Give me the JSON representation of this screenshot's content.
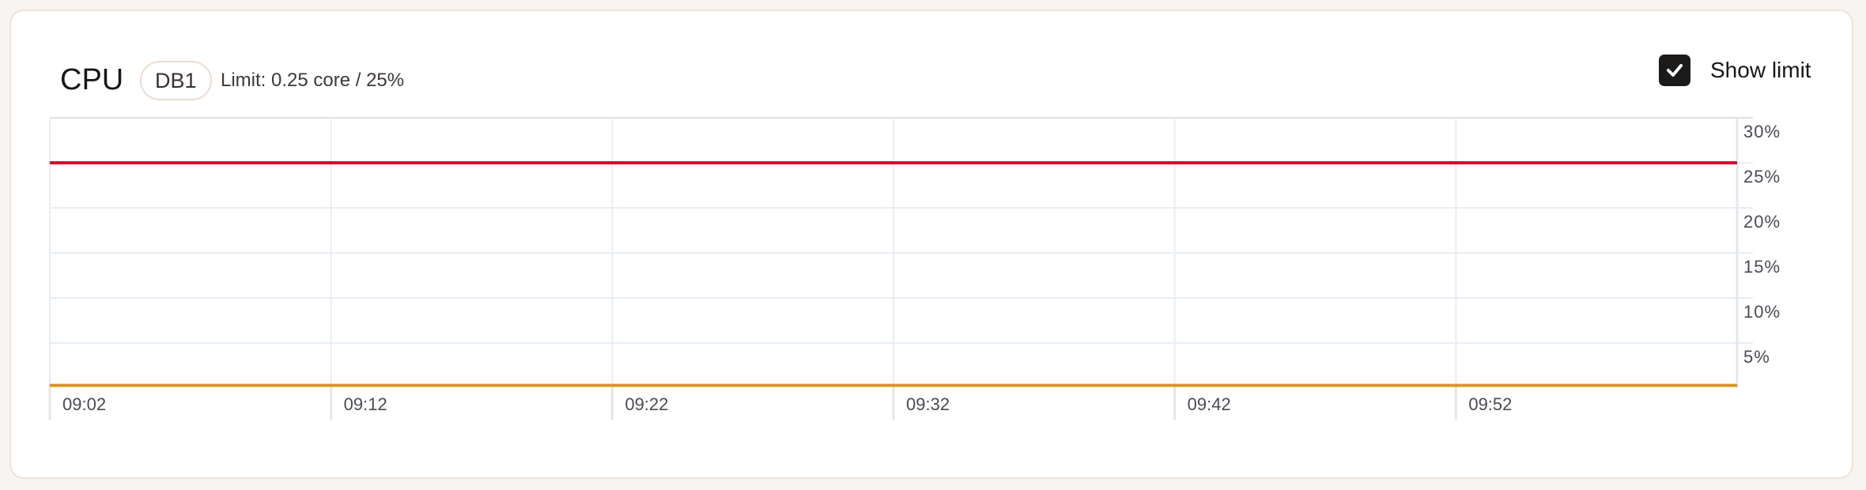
{
  "header": {
    "title": "CPU",
    "badge": "DB1",
    "limit_text": "Limit: 0.25 core / 25%",
    "show_limit_label": "Show limit",
    "show_limit_checked": true
  },
  "chart_data": {
    "type": "line",
    "title": "",
    "xlabel": "",
    "ylabel": "",
    "x_ticks": [
      "09:02",
      "09:12",
      "09:22",
      "09:32",
      "09:42",
      "09:52"
    ],
    "x_range": [
      "09:02",
      "10:02"
    ],
    "y_ticks": [
      30,
      25,
      20,
      15,
      10,
      5
    ],
    "y_tick_labels": [
      "30%",
      "25%",
      "20%",
      "15%",
      "10%",
      "5%"
    ],
    "ylim": [
      0,
      30
    ],
    "grid": true,
    "y_axis_position": "right",
    "series": [
      {
        "role": "limit",
        "color": "#d9042b",
        "x": [
          "09:02",
          "10:02"
        ],
        "values": [
          25,
          25
        ]
      },
      {
        "role": "usage",
        "color": "#d89628",
        "x": [
          "09:02",
          "10:02"
        ],
        "values": [
          0.3,
          0.3
        ]
      }
    ]
  }
}
